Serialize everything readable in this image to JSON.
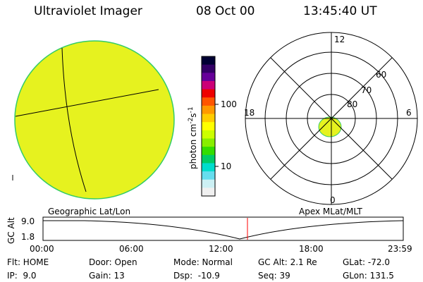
{
  "header": {
    "instrument": "Ultraviolet Imager",
    "date": "08 Oct 00",
    "time": "13:45:40 UT"
  },
  "colorbar": {
    "label": "photon cm",
    "exp1": "-2",
    "mid": "s",
    "exp2": "-1",
    "tick_100": "100",
    "tick_10": "10",
    "colors": [
      "#000033",
      "#330066",
      "#660099",
      "#cc0077",
      "#ee0000",
      "#ff5500",
      "#ff9900",
      "#ffcc00",
      "#ffff00",
      "#ccff00",
      "#88ee00",
      "#33dd00",
      "#00cc66",
      "#00ddcc",
      "#66ddee",
      "#ccf0f4",
      "#f0f0f0"
    ]
  },
  "polar_plot": {
    "label_top": "12",
    "label_bottom": "0",
    "label_left": "18",
    "label_right": "6",
    "ring_labels": [
      "60",
      "70",
      "80"
    ]
  },
  "map_labels": {
    "left": "Geographic Lat/Lon",
    "right": "Apex MLat/MLT"
  },
  "altitude_panel": {
    "axis_title": "GC Alt",
    "y_ticks": [
      "9.0",
      "1.8"
    ],
    "x_ticks": [
      "00:00",
      "06:00",
      "12:00",
      "18:00",
      "23:59"
    ]
  },
  "footer": {
    "row1": [
      "Flt: HOME",
      "Door: Open",
      "Mode: Normal",
      "GC Alt: 2.1 Re",
      "GLat: -72.0"
    ],
    "row2": [
      "IP:  9.0",
      "Gain: 13",
      "Dsp:  -10.9",
      "Seq: 39",
      "GLon: 131.5"
    ]
  },
  "colors": {
    "disk_fill": "#e6f21f",
    "disk_edge": "#33cc66",
    "marker": "#ff0000"
  }
}
